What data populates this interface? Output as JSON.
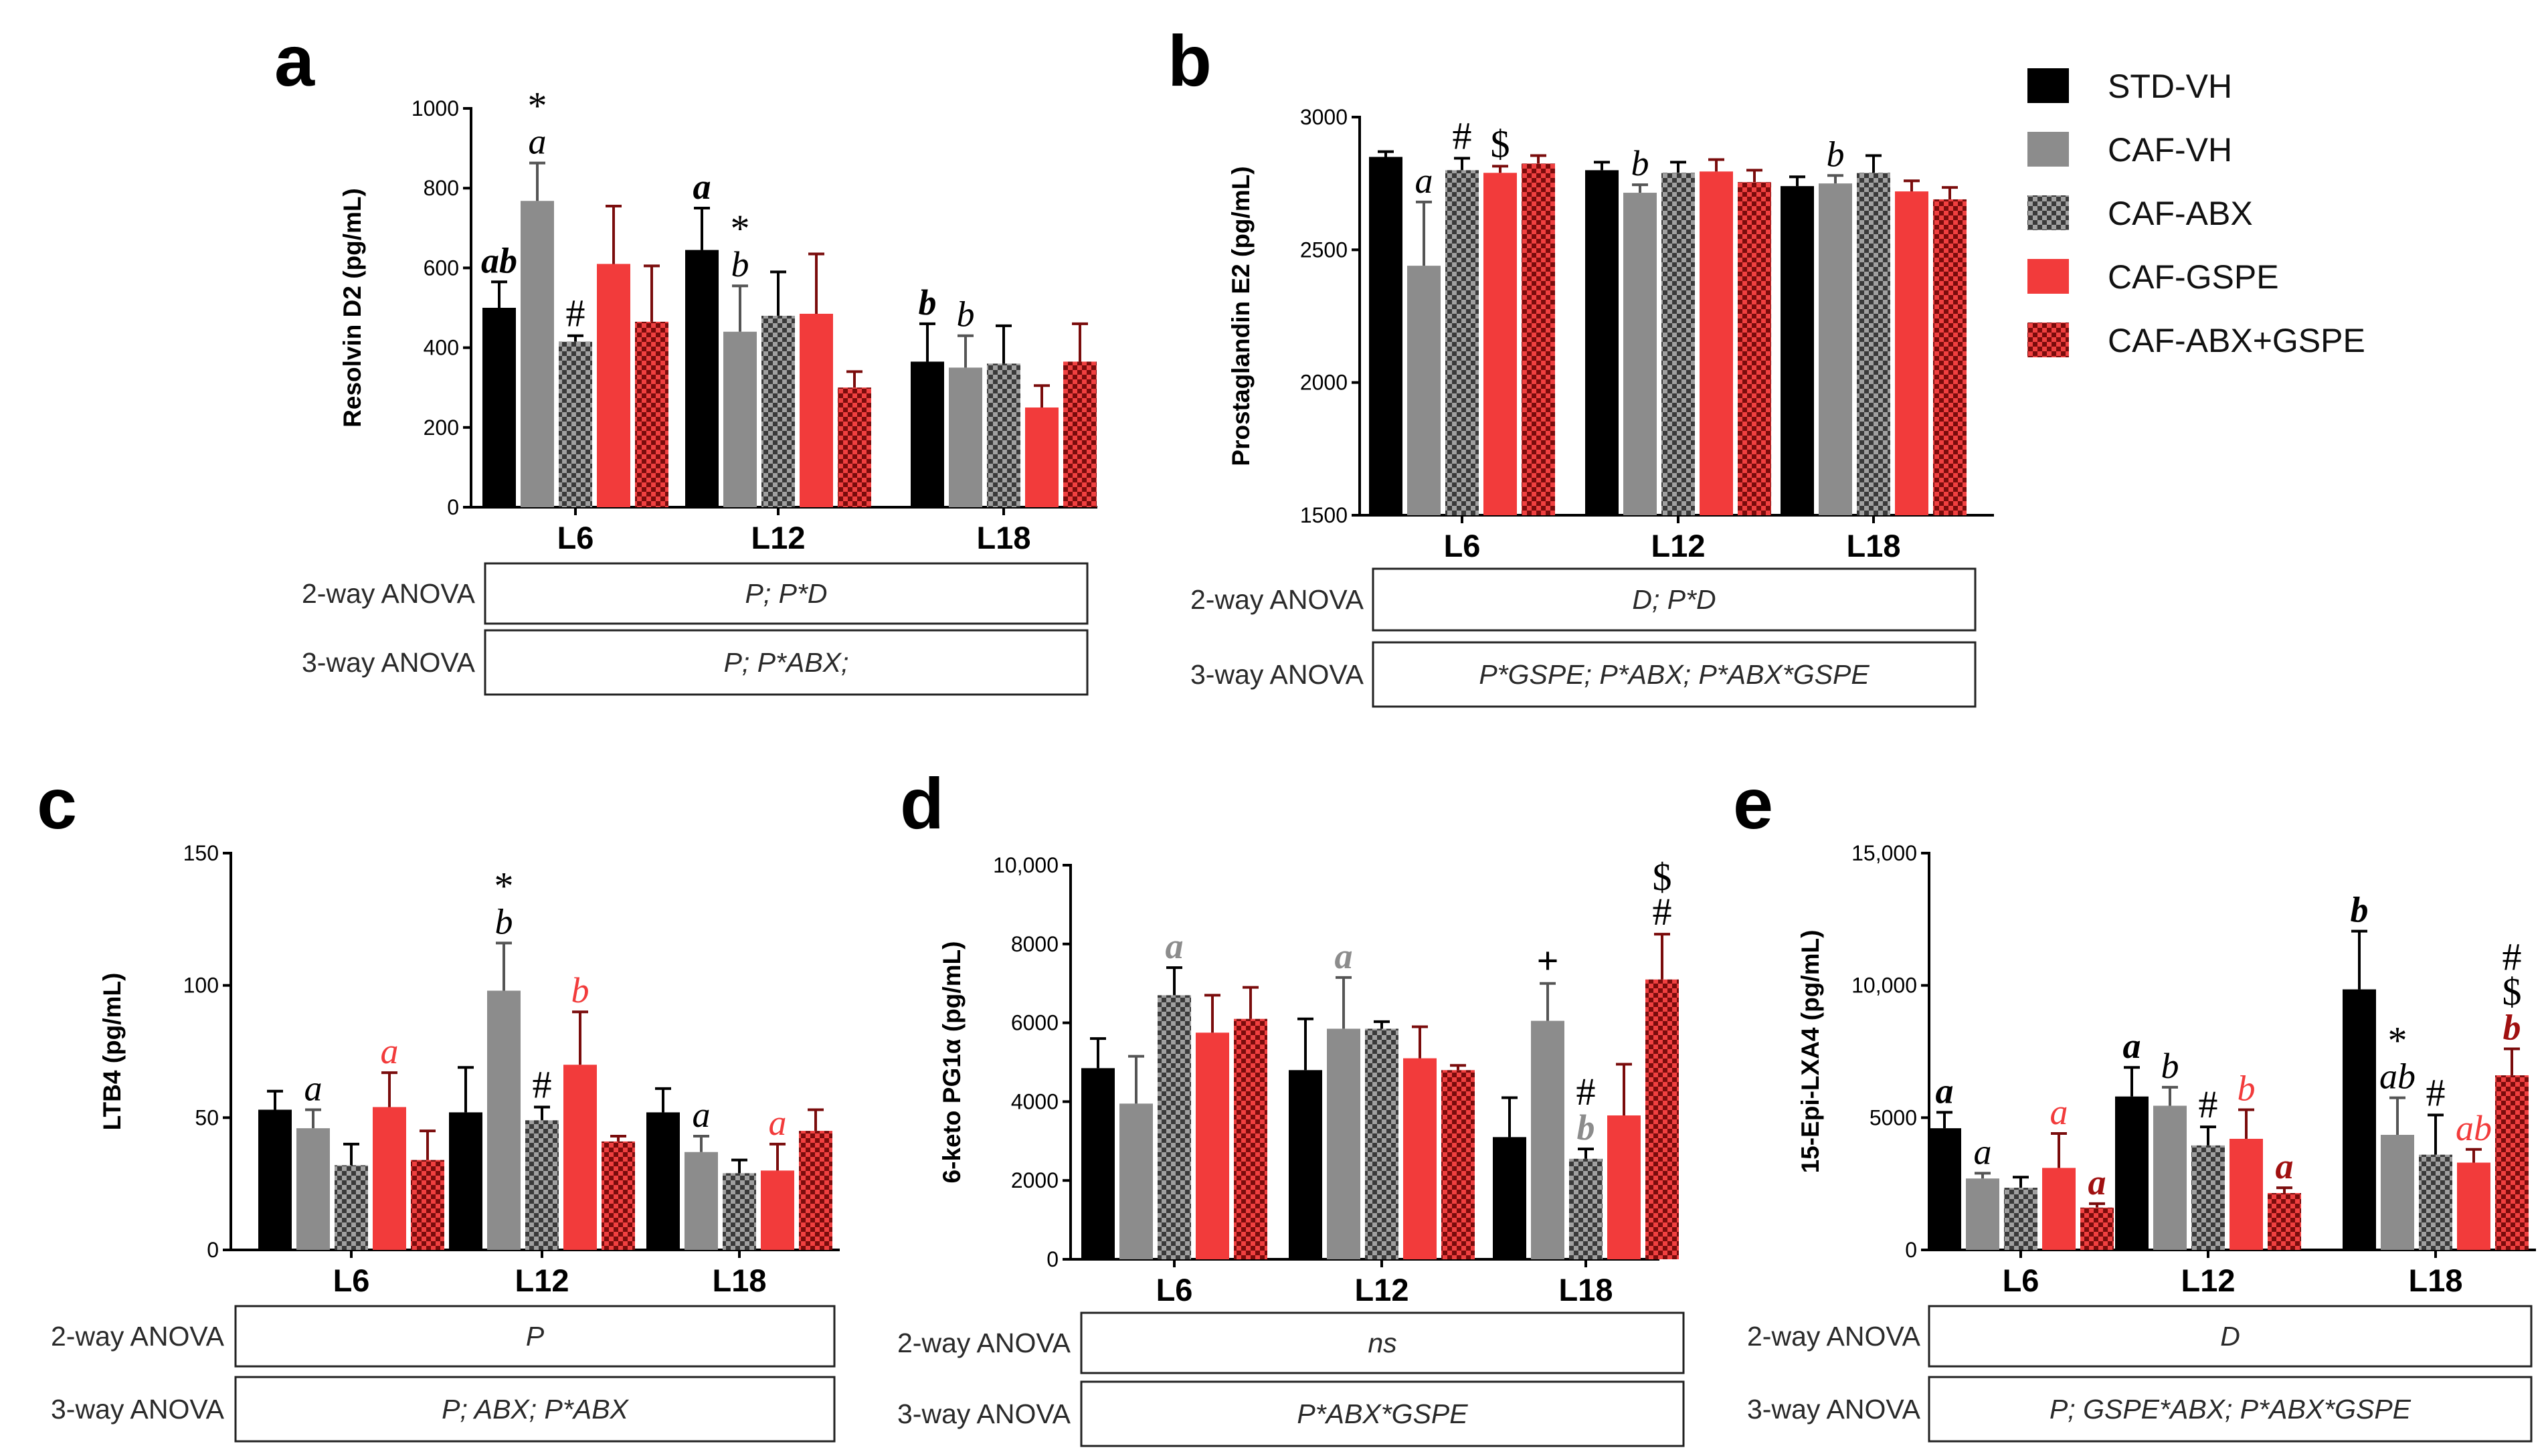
{
  "figure": {
    "legend": [
      {
        "name": "STD-VH",
        "color": "#000000",
        "pattern": "solid"
      },
      {
        "name": "CAF-VH",
        "color": "#8c8c8c",
        "pattern": "solid"
      },
      {
        "name": "CAF-ABX",
        "color": "#3a3a3a",
        "pattern": "checker-gray"
      },
      {
        "name": "CAF-GSPE",
        "color": "#f23b3b",
        "pattern": "solid"
      },
      {
        "name": "CAF-ABX+GSPE",
        "color": "#c41a1a",
        "pattern": "checker-red"
      }
    ],
    "anova_labels": {
      "two_way": "2-way ANOVA",
      "three_way": "3-way ANOVA"
    }
  },
  "chart_data": [
    {
      "panel": "a",
      "type": "bar",
      "ylabel": "Resolvin D2 (pg/mL)",
      "ylim": [
        0,
        1000
      ],
      "yticks": [
        "0",
        "200",
        "400",
        "600",
        "800",
        "1000"
      ],
      "categories": [
        "L6",
        "L12",
        "L18"
      ],
      "series": [
        {
          "name": "STD-VH",
          "values": [
            500,
            645,
            365
          ],
          "errors": [
            65,
            105,
            95
          ]
        },
        {
          "name": "CAF-VH",
          "values": [
            768,
            440,
            350
          ],
          "errors": [
            95,
            115,
            80
          ]
        },
        {
          "name": "CAF-ABX",
          "values": [
            415,
            480,
            360
          ],
          "errors": [
            15,
            110,
            95
          ]
        },
        {
          "name": "CAF-GSPE",
          "values": [
            610,
            485,
            250
          ],
          "errors": [
            145,
            150,
            55
          ]
        },
        {
          "name": "CAF-ABX+GSPE",
          "values": [
            465,
            300,
            365
          ],
          "errors": [
            140,
            40,
            95
          ]
        }
      ],
      "annotations": [
        {
          "cat": 0,
          "series": 0,
          "text": "ab",
          "color": "#000000",
          "bold": true
        },
        {
          "cat": 0,
          "series": 1,
          "text": "a",
          "color": "#000000",
          "bold": false
        },
        {
          "cat": 0,
          "series": 1,
          "text": "*",
          "color": "#000000",
          "bold": false
        },
        {
          "cat": 0,
          "series": 2,
          "text": "#",
          "color": "#000000",
          "bold": false
        },
        {
          "cat": 1,
          "series": 0,
          "text": "a",
          "color": "#000000",
          "bold": true
        },
        {
          "cat": 1,
          "series": 1,
          "text": "b",
          "color": "#000000",
          "bold": false
        },
        {
          "cat": 1,
          "series": 1,
          "text": "*",
          "color": "#000000",
          "bold": false
        },
        {
          "cat": 2,
          "series": 0,
          "text": "b",
          "color": "#000000",
          "bold": true
        },
        {
          "cat": 2,
          "series": 1,
          "text": "b",
          "color": "#000000",
          "bold": false
        }
      ],
      "anova": {
        "two_way": "P; P*D",
        "three_way": "P; P*ABX;"
      }
    },
    {
      "panel": "b",
      "type": "bar",
      "ylabel": "Prostaglandin E2 (pg/mL)",
      "ylim": [
        1500,
        3000
      ],
      "yticks": [
        "1500",
        "2000",
        "2500",
        "3000"
      ],
      "categories": [
        "L6",
        "L12",
        "L18"
      ],
      "series": [
        {
          "name": "STD-VH",
          "values": [
            2850,
            2800,
            2740
          ],
          "errors": [
            20,
            30,
            35
          ]
        },
        {
          "name": "CAF-VH",
          "values": [
            2440,
            2715,
            2750
          ],
          "errors": [
            240,
            30,
            30
          ]
        },
        {
          "name": "CAF-ABX",
          "values": [
            2800,
            2790,
            2790
          ],
          "errors": [
            45,
            40,
            65
          ]
        },
        {
          "name": "CAF-GSPE",
          "values": [
            2790,
            2795,
            2720
          ],
          "errors": [
            25,
            45,
            40
          ]
        },
        {
          "name": "CAF-ABX+GSPE",
          "values": [
            2825,
            2755,
            2690
          ],
          "errors": [
            30,
            45,
            45
          ]
        }
      ],
      "annotations": [
        {
          "cat": 0,
          "series": 1,
          "text": "a",
          "color": "#000000",
          "bold": false
        },
        {
          "cat": 0,
          "series": 2,
          "text": "#",
          "color": "#000000",
          "bold": false
        },
        {
          "cat": 0,
          "series": 3,
          "text": "$",
          "color": "#000000",
          "bold": false
        },
        {
          "cat": 1,
          "series": 1,
          "text": "b",
          "color": "#000000",
          "bold": false
        },
        {
          "cat": 2,
          "series": 1,
          "text": "b",
          "color": "#000000",
          "bold": false
        }
      ],
      "anova": {
        "two_way": "D; P*D",
        "three_way": "P*GSPE; P*ABX; P*ABX*GSPE"
      }
    },
    {
      "panel": "c",
      "type": "bar",
      "ylabel": "LTB4 (pg/mL)",
      "ylim": [
        0,
        150
      ],
      "yticks": [
        "0",
        "50",
        "100",
        "150"
      ],
      "categories": [
        "L6",
        "L12",
        "L18"
      ],
      "series": [
        {
          "name": "STD-VH",
          "values": [
            53,
            52,
            52
          ],
          "errors": [
            7,
            17,
            9
          ]
        },
        {
          "name": "CAF-VH",
          "values": [
            46,
            98,
            37
          ],
          "errors": [
            7,
            18,
            6
          ]
        },
        {
          "name": "CAF-ABX",
          "values": [
            32,
            49,
            29
          ],
          "errors": [
            8,
            5,
            5
          ]
        },
        {
          "name": "CAF-GSPE",
          "values": [
            54,
            70,
            30
          ],
          "errors": [
            13,
            20,
            10
          ]
        },
        {
          "name": "CAF-ABX+GSPE",
          "values": [
            34,
            41,
            45
          ],
          "errors": [
            11,
            2,
            8
          ]
        }
      ],
      "annotations": [
        {
          "cat": 0,
          "series": 1,
          "text": "a",
          "color": "#000000",
          "bold": false
        },
        {
          "cat": 0,
          "series": 3,
          "text": "a",
          "color": "#f23b3b",
          "bold": false
        },
        {
          "cat": 1,
          "series": 1,
          "text": "b",
          "color": "#000000",
          "bold": false
        },
        {
          "cat": 1,
          "series": 1,
          "text": "*",
          "color": "#000000",
          "bold": false
        },
        {
          "cat": 1,
          "series": 2,
          "text": "#",
          "color": "#000000",
          "bold": false
        },
        {
          "cat": 1,
          "series": 3,
          "text": "b",
          "color": "#f23b3b",
          "bold": false
        },
        {
          "cat": 2,
          "series": 1,
          "text": "a",
          "color": "#000000",
          "bold": false
        },
        {
          "cat": 2,
          "series": 3,
          "text": "a",
          "color": "#f23b3b",
          "bold": false
        }
      ],
      "anova": {
        "two_way": "P",
        "three_way": "P; ABX; P*ABX"
      }
    },
    {
      "panel": "d",
      "type": "bar",
      "ylabel": "6-keto PG1α (pg/mL)",
      "ylim": [
        0,
        10000
      ],
      "yticks": [
        "0",
        "2000",
        "4000",
        "6000",
        "8000",
        "10,000"
      ],
      "categories": [
        "L6",
        "L12",
        "L18"
      ],
      "series": [
        {
          "name": "STD-VH",
          "values": [
            4850,
            4800,
            3100
          ],
          "errors": [
            750,
            1300,
            1000
          ]
        },
        {
          "name": "CAF-VH",
          "values": [
            3950,
            5850,
            6050
          ],
          "errors": [
            1200,
            1300,
            950
          ]
        },
        {
          "name": "CAF-ABX",
          "values": [
            6700,
            5850,
            2550
          ],
          "errors": [
            700,
            180,
            250
          ]
        },
        {
          "name": "CAF-GSPE",
          "values": [
            5750,
            5100,
            3650
          ],
          "errors": [
            950,
            800,
            1300
          ]
        },
        {
          "name": "CAF-ABX+GSPE",
          "values": [
            6100,
            4800,
            7100
          ],
          "errors": [
            800,
            120,
            1150
          ]
        }
      ],
      "annotations": [
        {
          "cat": 0,
          "series": 2,
          "text": "a",
          "color": "#8c8c8c",
          "bold": true
        },
        {
          "cat": 1,
          "series": 1,
          "text": "a",
          "color": "#8c8c8c",
          "bold": true
        },
        {
          "cat": 2,
          "series": 1,
          "text": "+",
          "color": "#000000",
          "bold": true
        },
        {
          "cat": 2,
          "series": 2,
          "text": "b",
          "color": "#8c8c8c",
          "bold": true
        },
        {
          "cat": 2,
          "series": 2,
          "text": "#",
          "color": "#000000",
          "bold": false
        },
        {
          "cat": 2,
          "series": 4,
          "text": "#",
          "color": "#000000",
          "bold": false
        },
        {
          "cat": 2,
          "series": 4,
          "text": "$",
          "color": "#000000",
          "bold": false
        }
      ],
      "anova": {
        "two_way": "ns",
        "three_way": "P*ABX*GSPE"
      }
    },
    {
      "panel": "e",
      "type": "bar",
      "ylabel": "15-Epi-LXA4 (pg/mL)",
      "ylim": [
        0,
        15000
      ],
      "yticks": [
        "0",
        "5000",
        "10,000",
        "15,000"
      ],
      "categories": [
        "L6",
        "L12",
        "L18"
      ],
      "series": [
        {
          "name": "STD-VH",
          "values": [
            4600,
            5800,
            9850
          ],
          "errors": [
            600,
            1100,
            2200
          ]
        },
        {
          "name": "CAF-VH",
          "values": [
            2700,
            5450,
            4350
          ],
          "errors": [
            200,
            700,
            1400
          ]
        },
        {
          "name": "CAF-ABX",
          "values": [
            2350,
            3950,
            3600
          ],
          "errors": [
            400,
            700,
            1500
          ]
        },
        {
          "name": "CAF-GSPE",
          "values": [
            3100,
            4200,
            3300
          ],
          "errors": [
            1300,
            1100,
            500
          ]
        },
        {
          "name": "CAF-ABX+GSPE",
          "values": [
            1600,
            2150,
            6600
          ],
          "errors": [
            150,
            200,
            1000
          ]
        }
      ],
      "annotations": [
        {
          "cat": 0,
          "series": 0,
          "text": "a",
          "color": "#000000",
          "bold": true
        },
        {
          "cat": 0,
          "series": 1,
          "text": "a",
          "color": "#000000",
          "bold": false
        },
        {
          "cat": 0,
          "series": 3,
          "text": "a",
          "color": "#f23b3b",
          "bold": false
        },
        {
          "cat": 0,
          "series": 4,
          "text": "a",
          "color": "#a01010",
          "bold": true
        },
        {
          "cat": 1,
          "series": 0,
          "text": "a",
          "color": "#000000",
          "bold": true
        },
        {
          "cat": 1,
          "series": 1,
          "text": "b",
          "color": "#000000",
          "bold": false
        },
        {
          "cat": 1,
          "series": 2,
          "text": "#",
          "color": "#000000",
          "bold": false
        },
        {
          "cat": 1,
          "series": 3,
          "text": "b",
          "color": "#f23b3b",
          "bold": false
        },
        {
          "cat": 1,
          "series": 4,
          "text": "a",
          "color": "#a01010",
          "bold": true
        },
        {
          "cat": 2,
          "series": 0,
          "text": "b",
          "color": "#000000",
          "bold": true
        },
        {
          "cat": 2,
          "series": 1,
          "text": "ab",
          "color": "#000000",
          "bold": false
        },
        {
          "cat": 2,
          "series": 1,
          "text": "*",
          "color": "#000000",
          "bold": false
        },
        {
          "cat": 2,
          "series": 2,
          "text": "#",
          "color": "#000000",
          "bold": false
        },
        {
          "cat": 2,
          "series": 3,
          "text": "ab",
          "color": "#f23b3b",
          "bold": false
        },
        {
          "cat": 2,
          "series": 4,
          "text": "b",
          "color": "#a01010",
          "bold": true
        },
        {
          "cat": 2,
          "series": 4,
          "text": "$",
          "color": "#000000",
          "bold": false
        },
        {
          "cat": 2,
          "series": 4,
          "text": "#",
          "color": "#000000",
          "bold": false
        }
      ],
      "anova": {
        "two_way": "D",
        "three_way": "P; GSPE*ABX; P*ABX*GSPE"
      }
    }
  ]
}
